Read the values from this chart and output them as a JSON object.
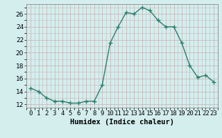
{
  "x": [
    0,
    1,
    2,
    3,
    4,
    5,
    6,
    7,
    8,
    9,
    10,
    11,
    12,
    13,
    14,
    15,
    16,
    17,
    18,
    19,
    20,
    21,
    22,
    23
  ],
  "y": [
    14.5,
    14.0,
    13.0,
    12.5,
    12.5,
    12.2,
    12.2,
    12.5,
    12.5,
    15.0,
    21.5,
    24.0,
    26.2,
    26.0,
    27.0,
    26.5,
    25.0,
    24.0,
    24.0,
    21.5,
    18.0,
    16.2,
    16.5,
    15.5
  ],
  "line_color": "#2e7d6e",
  "marker": "+",
  "marker_size": 4,
  "line_width": 1.0,
  "bg_color": "#d4eeee",
  "grid_color": "#c8b8b8",
  "xlabel": "Humidex (Indice chaleur)",
  "ylim": [
    11.5,
    27.5
  ],
  "xlim": [
    -0.5,
    23.5
  ],
  "yticks": [
    12,
    14,
    16,
    18,
    20,
    22,
    24,
    26
  ],
  "xticks": [
    0,
    1,
    2,
    3,
    4,
    5,
    6,
    7,
    8,
    9,
    10,
    11,
    12,
    13,
    14,
    15,
    16,
    17,
    18,
    19,
    20,
    21,
    22,
    23
  ],
  "xlabel_fontsize": 7.5,
  "tick_fontsize": 6.5,
  "spine_color": "#888888"
}
